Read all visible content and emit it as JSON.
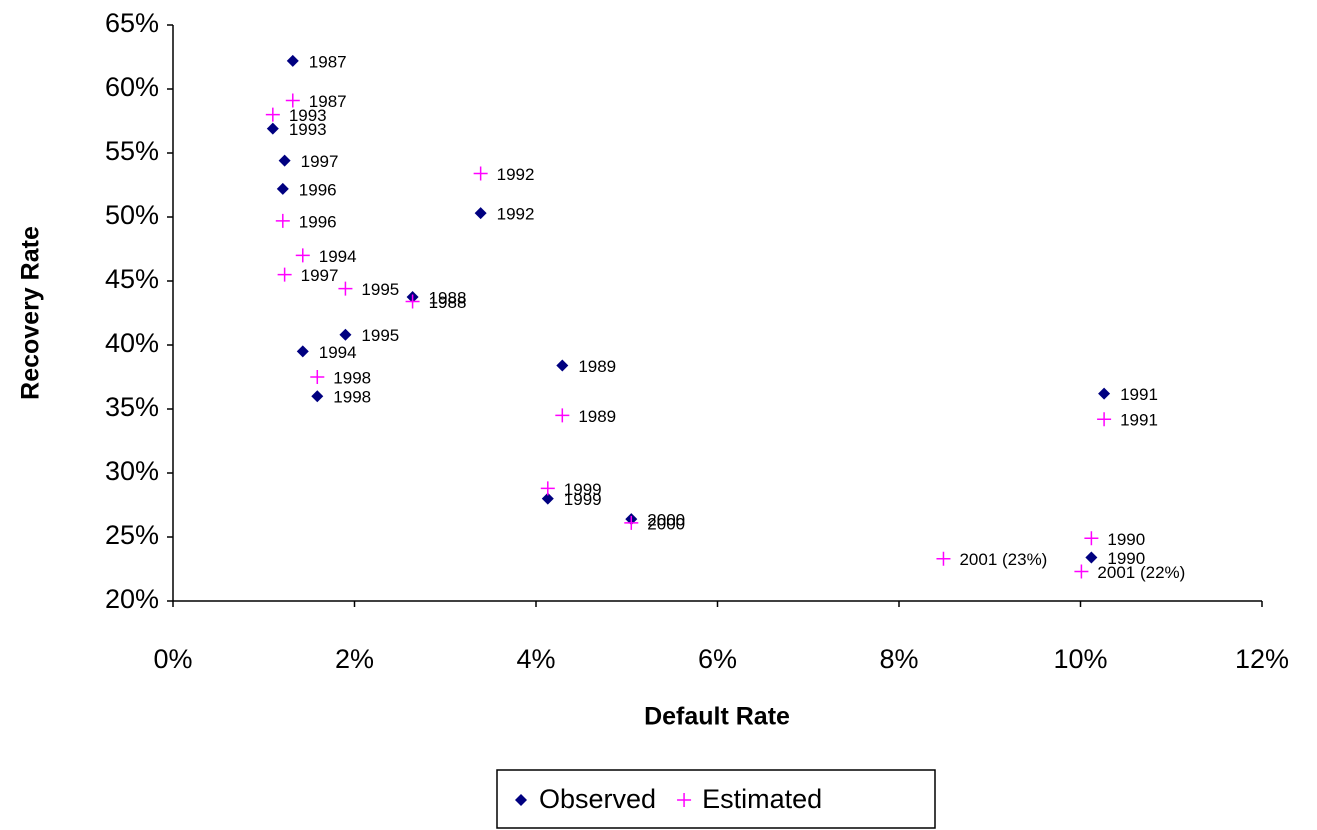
{
  "chart_data": {
    "type": "scatter",
    "x_label": "Default Rate",
    "y_label": "Recovery Rate",
    "xlim": [
      0,
      12
    ],
    "ylim": [
      20,
      65
    ],
    "xticks": [
      {
        "value": 0,
        "label": "0%"
      },
      {
        "value": 2,
        "label": "2%"
      },
      {
        "value": 4,
        "label": "4%"
      },
      {
        "value": 6,
        "label": "6%"
      },
      {
        "value": 8,
        "label": "8%"
      },
      {
        "value": 10,
        "label": "10%"
      },
      {
        "value": 12,
        "label": "12%"
      }
    ],
    "yticks": [
      {
        "value": 20,
        "label": "20%"
      },
      {
        "value": 25,
        "label": "25%"
      },
      {
        "value": 30,
        "label": "30%"
      },
      {
        "value": 35,
        "label": "35%"
      },
      {
        "value": 40,
        "label": "40%"
      },
      {
        "value": 45,
        "label": "45%"
      },
      {
        "value": 50,
        "label": "50%"
      },
      {
        "value": 55,
        "label": "55%"
      },
      {
        "value": 60,
        "label": "60%"
      },
      {
        "value": 65,
        "label": "65%"
      }
    ],
    "legend_position": "bottom",
    "series": [
      {
        "name": "Observed",
        "color": "#000080",
        "marker": "diamond",
        "x": [
          1.32,
          1.1,
          1.23,
          1.21,
          3.39,
          2.64,
          1.9,
          1.43,
          1.59,
          4.29,
          10.26,
          4.13,
          5.05,
          10.12
        ],
        "values": [
          62.2,
          56.9,
          54.4,
          52.2,
          50.3,
          43.75,
          40.8,
          39.5,
          36.0,
          38.4,
          36.2,
          28.0,
          26.4,
          23.4
        ],
        "point_labels": [
          "1987",
          "1993",
          "1997",
          "1996",
          "1992",
          "1988",
          "1995",
          "1994",
          "1998",
          "1989",
          "1991",
          "1999",
          "2000",
          "1990"
        ]
      },
      {
        "name": "Estimated",
        "color": "#ff00ff",
        "marker": "plus",
        "x": [
          1.32,
          1.1,
          1.21,
          1.43,
          1.23,
          1.9,
          2.64,
          1.59,
          3.39,
          4.29,
          10.26,
          4.13,
          5.05,
          10.12,
          8.49,
          10.01
        ],
        "values": [
          59.1,
          58.0,
          49.7,
          47.0,
          45.5,
          44.4,
          43.4,
          37.5,
          53.4,
          34.5,
          34.2,
          28.8,
          26.1,
          24.9,
          23.3,
          22.3
        ],
        "point_labels": [
          "1987",
          "1993",
          "1996",
          "1994",
          "1997",
          "1995",
          "1988",
          "1998",
          "1992",
          "1989",
          "1991",
          "1999",
          "2000",
          "1990",
          "2001 (23%)",
          "2001 (22%)"
        ]
      }
    ]
  }
}
